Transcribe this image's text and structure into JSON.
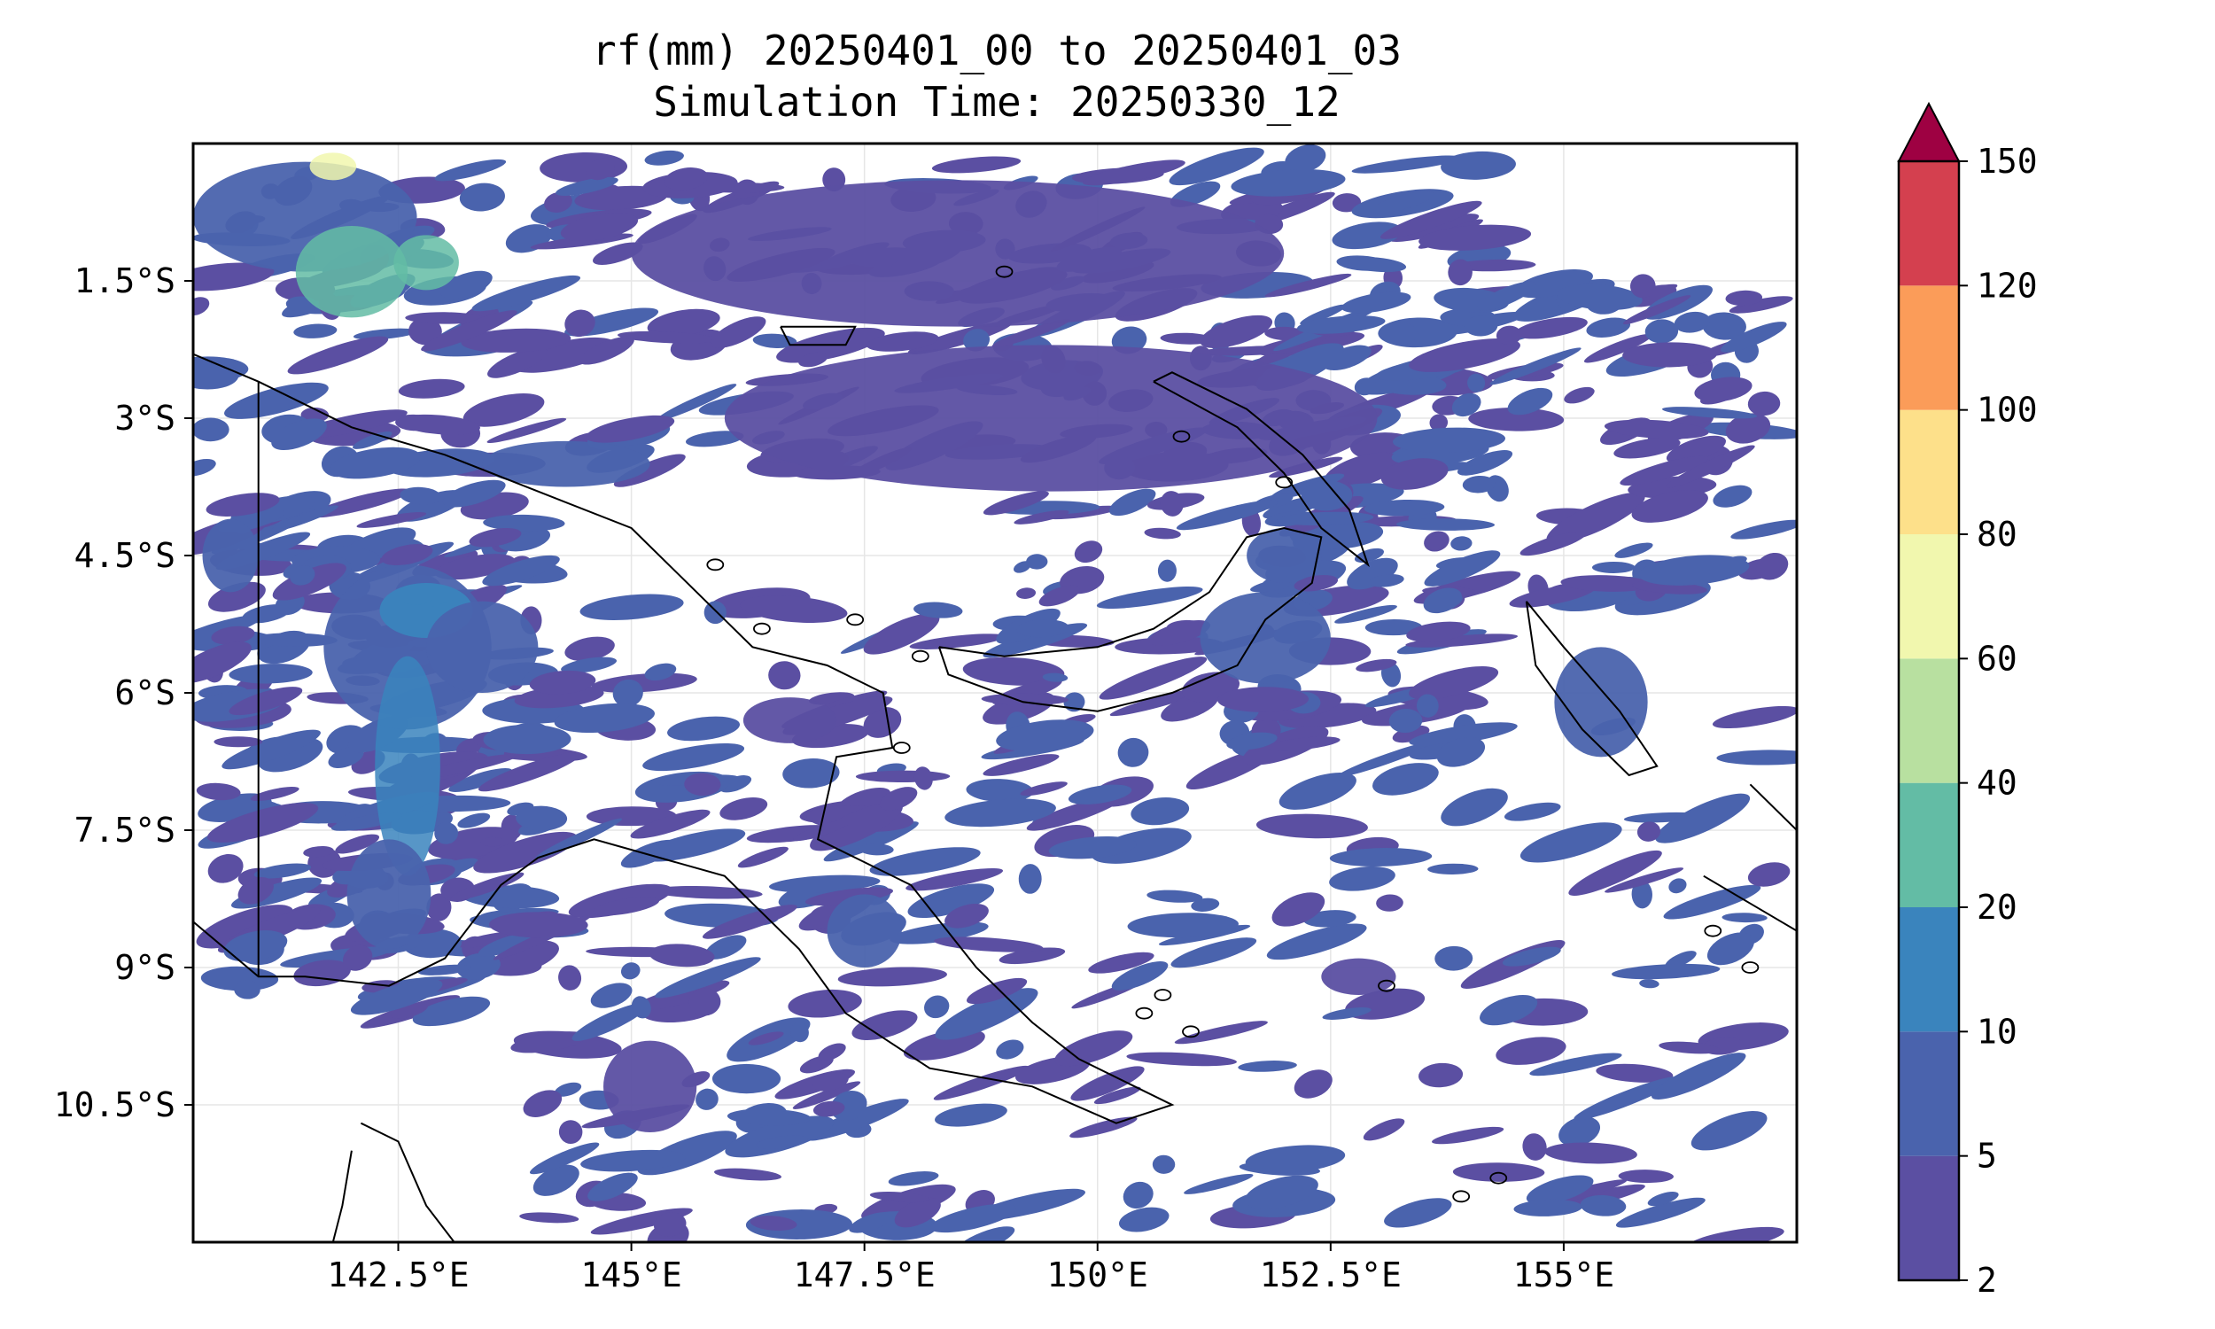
{
  "title": {
    "line1": "rf(mm) 20250401_00 to 20250401_03",
    "line2": "Simulation Time: 20250330_12"
  },
  "map": {
    "lon_range": [
      140.3,
      157.5
    ],
    "lat_range": [
      -12.0,
      0.0
    ],
    "gridlines": true,
    "coastlines": true,
    "lon_ticks": [
      {
        "value": 142.5,
        "label": "142.5°E"
      },
      {
        "value": 145,
        "label": "145°E"
      },
      {
        "value": 147.5,
        "label": "147.5°E"
      },
      {
        "value": 150,
        "label": "150°E"
      },
      {
        "value": 152.5,
        "label": "152.5°E"
      },
      {
        "value": 155,
        "label": "155°E"
      }
    ],
    "lat_ticks": [
      {
        "value": -1.5,
        "label": "1.5°S"
      },
      {
        "value": -3,
        "label": "3°S"
      },
      {
        "value": -4.5,
        "label": "4.5°S"
      },
      {
        "value": -6,
        "label": "6°S"
      },
      {
        "value": -7.5,
        "label": "7.5°S"
      },
      {
        "value": -9,
        "label": "9°S"
      },
      {
        "value": -10.5,
        "label": "10.5°S"
      }
    ]
  },
  "colorbar": {
    "levels": [
      2,
      5,
      10,
      20,
      40,
      60,
      80,
      100,
      120,
      150
    ],
    "colors": [
      "#5b4fa2",
      "#4a63ad",
      "#3a84bd",
      "#63bca5",
      "#b8e0a0",
      "#f1f7ae",
      "#fde08a",
      "#fb9c59",
      "#d4404f"
    ],
    "extend_color": "#9e0142",
    "extend": "max"
  },
  "chart_data": {
    "type": "heatmap",
    "title": "rf(mm) 20250401_00 to 20250401_03",
    "subtitle": "Simulation Time: 20250330_12",
    "xlim": [
      140.3,
      157.5
    ],
    "ylim": [
      -12.0,
      0.0
    ],
    "rainfall_regions": [
      {
        "lon": 141.5,
        "lat": -0.8,
        "rx": 1.2,
        "ry": 0.6,
        "mm": 8
      },
      {
        "lon": 142.0,
        "lat": -1.4,
        "rx": 0.6,
        "ry": 0.5,
        "mm": 20
      },
      {
        "lon": 141.8,
        "lat": -0.25,
        "rx": 0.25,
        "ry": 0.15,
        "mm": 60
      },
      {
        "lon": 142.8,
        "lat": -1.3,
        "rx": 0.35,
        "ry": 0.3,
        "mm": 20
      },
      {
        "lon": 142.6,
        "lat": -5.5,
        "rx": 0.9,
        "ry": 0.9,
        "mm": 8
      },
      {
        "lon": 142.6,
        "lat": -6.8,
        "rx": 0.35,
        "ry": 1.2,
        "mm": 15
      },
      {
        "lon": 142.8,
        "lat": -5.1,
        "rx": 0.5,
        "ry": 0.3,
        "mm": 10
      },
      {
        "lon": 142.4,
        "lat": -8.2,
        "rx": 0.45,
        "ry": 0.6,
        "mm": 8
      },
      {
        "lon": 143.4,
        "lat": -5.5,
        "rx": 0.6,
        "ry": 0.5,
        "mm": 6
      },
      {
        "lon": 144.3,
        "lat": -3.5,
        "rx": 0.9,
        "ry": 0.25,
        "mm": 5
      },
      {
        "lon": 140.7,
        "lat": -4.5,
        "rx": 0.3,
        "ry": 0.4,
        "mm": 5
      },
      {
        "lon": 151.8,
        "lat": -5.4,
        "rx": 0.7,
        "ry": 0.5,
        "mm": 6
      },
      {
        "lon": 152.0,
        "lat": -4.5,
        "rx": 0.4,
        "ry": 0.3,
        "mm": 5
      },
      {
        "lon": 147.5,
        "lat": -8.6,
        "rx": 0.4,
        "ry": 0.4,
        "mm": 5
      },
      {
        "lon": 146.7,
        "lat": -6.3,
        "rx": 0.5,
        "ry": 0.25,
        "mm": 4
      },
      {
        "lon": 155.4,
        "lat": -6.1,
        "rx": 0.5,
        "ry": 0.6,
        "mm": 5
      },
      {
        "lon": 149.5,
        "lat": -3.0,
        "rx": 3.5,
        "ry": 0.8,
        "mm": 3
      },
      {
        "lon": 148.5,
        "lat": -1.2,
        "rx": 3.5,
        "ry": 0.8,
        "mm": 3
      },
      {
        "lon": 152.8,
        "lat": -9.1,
        "rx": 0.4,
        "ry": 0.2,
        "mm": 4
      },
      {
        "lon": 145.2,
        "lat": -10.3,
        "rx": 0.5,
        "ry": 0.5,
        "mm": 3
      }
    ]
  }
}
